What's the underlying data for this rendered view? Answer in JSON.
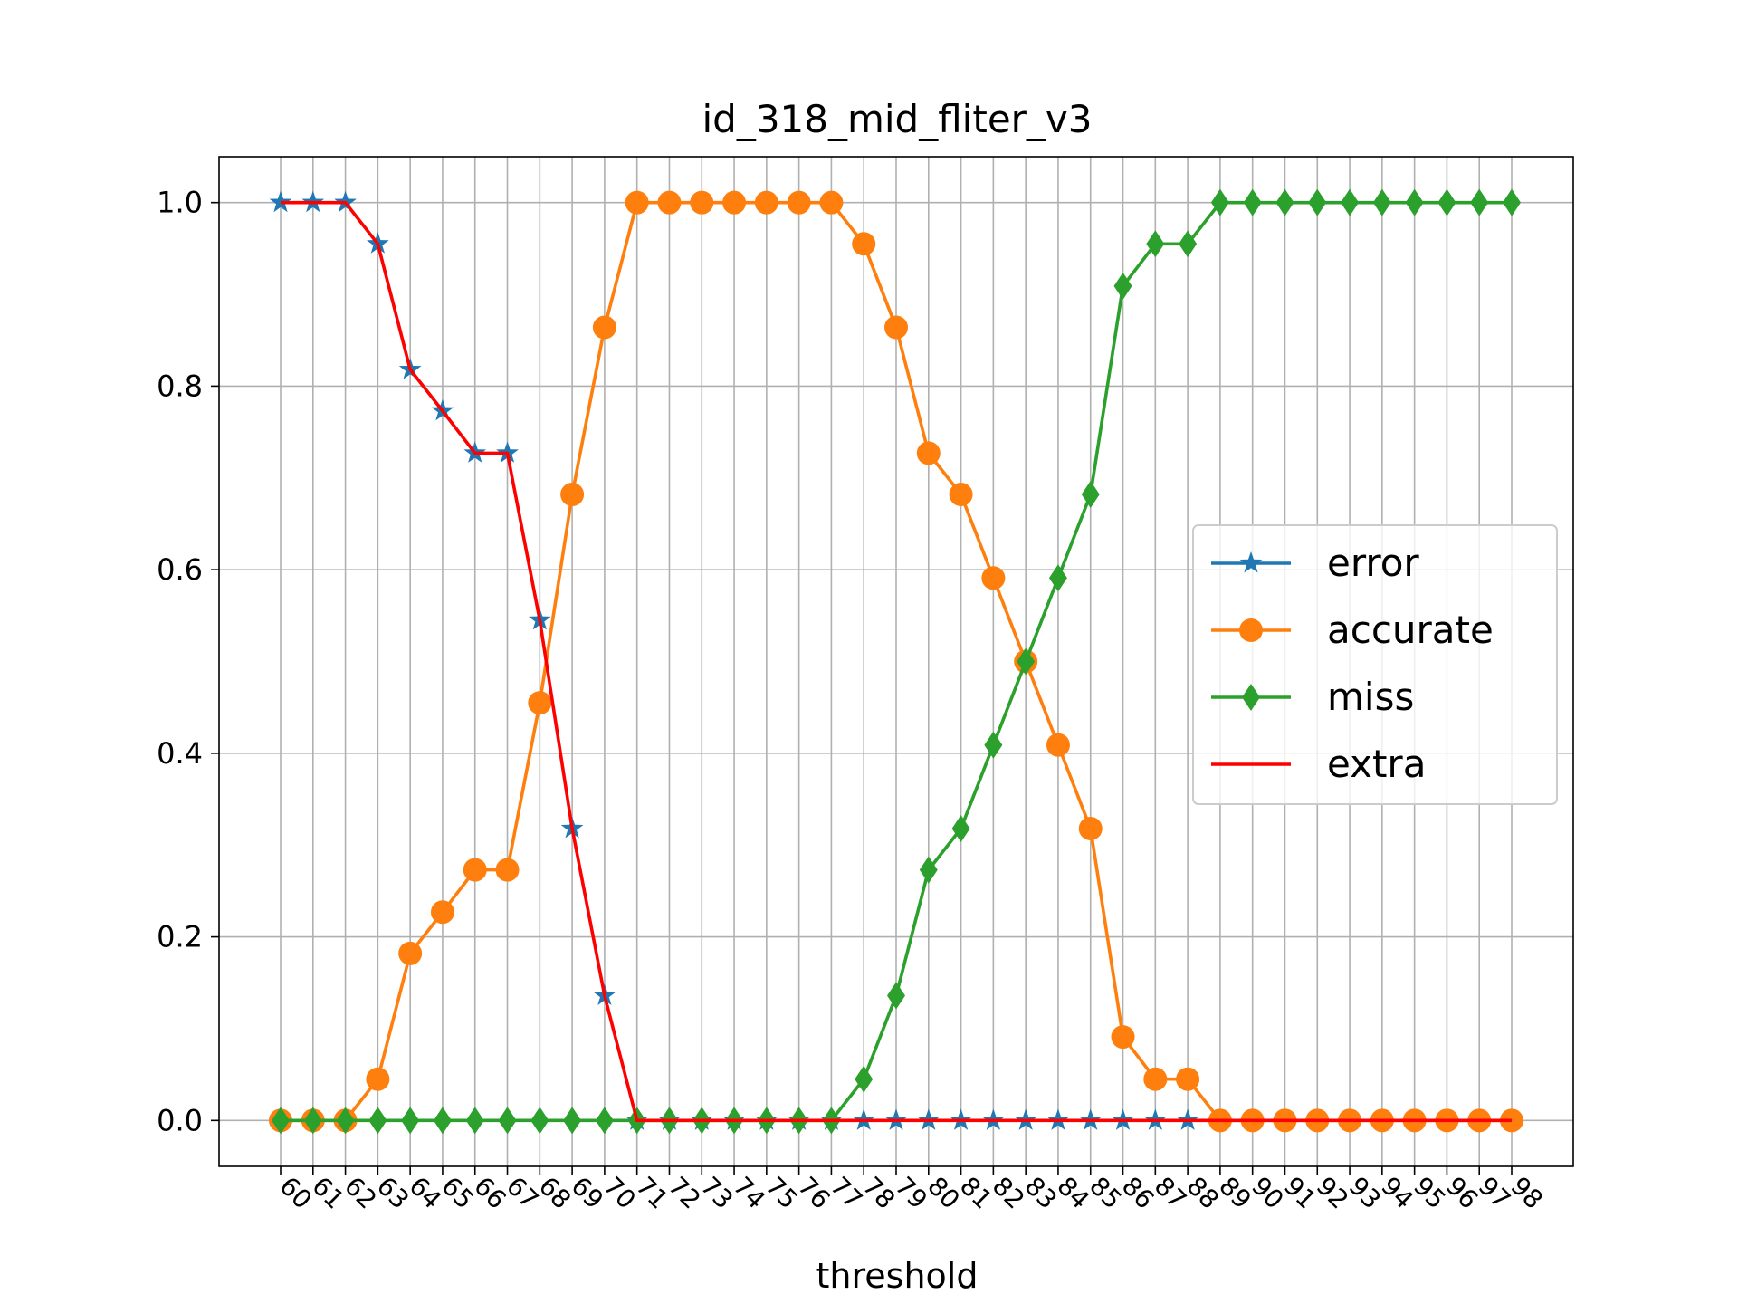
{
  "chart_data": {
    "type": "line",
    "title": "id_318_mid_fliter_v3",
    "xlabel": "threshold",
    "ylabel": "",
    "x": [
      60,
      61,
      62,
      63,
      64,
      65,
      66,
      67,
      68,
      69,
      70,
      71,
      72,
      73,
      74,
      75,
      76,
      77,
      78,
      79,
      80,
      81,
      82,
      83,
      84,
      85,
      86,
      87,
      88,
      89,
      90,
      91,
      92,
      93,
      94,
      95,
      96,
      97,
      98
    ],
    "xlim": [
      58.1,
      99.9
    ],
    "ylim": [
      -0.05,
      1.05
    ],
    "yticks": [
      0.0,
      0.2,
      0.4,
      0.6,
      0.8,
      1.0
    ],
    "ytick_labels": [
      "0.0",
      "0.2",
      "0.4",
      "0.6",
      "0.8",
      "1.0"
    ],
    "grid": true,
    "legend_position": "center-right",
    "series": [
      {
        "name": "error",
        "color": "#1f77b4",
        "marker": "star",
        "draw_line": false,
        "values": [
          1.0,
          1.0,
          1.0,
          0.955,
          0.818,
          0.773,
          0.727,
          0.727,
          0.545,
          0.318,
          0.136,
          0,
          0,
          0,
          0,
          0,
          0,
          0,
          0,
          0,
          0,
          0,
          0,
          0,
          0,
          0,
          0,
          0,
          0,
          0,
          0,
          0,
          0,
          0,
          0,
          0,
          0,
          0,
          0
        ]
      },
      {
        "name": "accurate",
        "color": "#ff7f0e",
        "marker": "circle",
        "draw_line": true,
        "values": [
          0,
          0,
          0,
          0.045,
          0.182,
          0.227,
          0.273,
          0.273,
          0.455,
          0.682,
          0.864,
          1.0,
          1.0,
          1.0,
          1.0,
          1.0,
          1.0,
          1.0,
          0.955,
          0.864,
          0.727,
          0.682,
          0.591,
          0.5,
          0.409,
          0.318,
          0.091,
          0.045,
          0.045,
          0,
          0,
          0,
          0,
          0,
          0,
          0,
          0,
          0,
          0
        ]
      },
      {
        "name": "miss",
        "color": "#2ca02c",
        "marker": "diamond",
        "draw_line": true,
        "values": [
          0,
          0,
          0,
          0,
          0,
          0,
          0,
          0,
          0,
          0,
          0,
          0,
          0,
          0,
          0,
          0,
          0,
          0,
          0.045,
          0.136,
          0.273,
          0.318,
          0.409,
          0.5,
          0.591,
          0.682,
          0.909,
          0.955,
          0.955,
          1.0,
          1.0,
          1.0,
          1.0,
          1.0,
          1.0,
          1.0,
          1.0,
          1.0,
          1.0
        ]
      },
      {
        "name": "extra",
        "color": "#ff0000",
        "marker": "none",
        "draw_line": true,
        "values": [
          1.0,
          1.0,
          1.0,
          0.955,
          0.818,
          0.773,
          0.727,
          0.727,
          0.545,
          0.318,
          0.136,
          0,
          0,
          0,
          0,
          0,
          0,
          0,
          0,
          0,
          0,
          0,
          0,
          0,
          0,
          0,
          0,
          0,
          0,
          0,
          0,
          0,
          0,
          0,
          0,
          0,
          0,
          0,
          0
        ]
      }
    ]
  }
}
